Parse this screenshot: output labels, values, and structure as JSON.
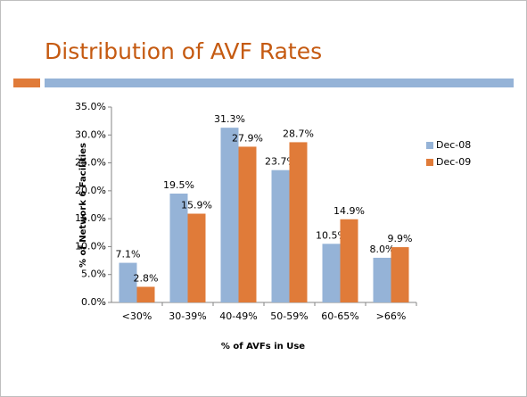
{
  "chart_data": {
    "type": "bar",
    "title": "Distribution of AVF Rates",
    "y_label": "% of Network 6 Facilities",
    "x_label": "% of AVFs in Use",
    "categories": [
      "<30%",
      "30-39%",
      "40-49%",
      "50-59%",
      "60-65%",
      ">66%"
    ],
    "series": [
      {
        "name": "Dec-08",
        "color": "#95b3d7",
        "values": [
          7.1,
          19.5,
          31.3,
          23.7,
          10.5,
          8.0
        ],
        "value_labels": [
          "7.1%",
          "19.5%",
          "31.3%",
          "23.7%",
          "10.5%",
          "8.0%"
        ]
      },
      {
        "name": "Dec-09",
        "color": "#e07b39",
        "values": [
          2.8,
          15.9,
          27.9,
          28.7,
          14.9,
          9.9
        ],
        "value_labels": [
          "2.8%",
          "15.9%",
          "27.9%",
          "28.7%",
          "14.9%",
          "9.9%"
        ]
      }
    ],
    "ylim": [
      0,
      35
    ],
    "yticks": [
      {
        "value": 0,
        "label": "0.0%"
      },
      {
        "value": 5,
        "label": "5.0%"
      },
      {
        "value": 10,
        "label": "10.0%"
      },
      {
        "value": 15,
        "label": "15.0%"
      },
      {
        "value": 20,
        "label": "20.0%"
      },
      {
        "value": 25,
        "label": "25.0%"
      },
      {
        "value": 30,
        "label": "30.0%"
      },
      {
        "value": 35,
        "label": "35.0%"
      }
    ],
    "grid": false,
    "legend": "right"
  }
}
